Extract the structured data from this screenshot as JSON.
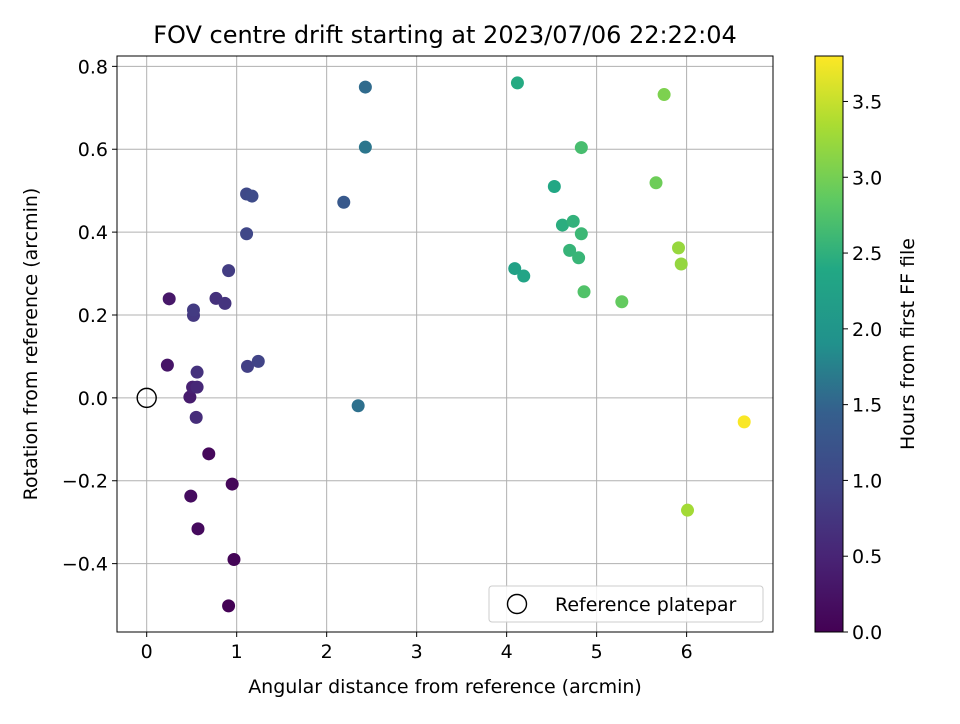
{
  "chart_data": {
    "type": "scatter",
    "title": "FOV centre drift starting at 2023/07/06 22:22:04",
    "xlabel": "Angular distance from reference (arcmin)",
    "ylabel": "Rotation from reference (arcmin)",
    "xlim": [
      -0.33,
      6.96
    ],
    "ylim": [
      -0.565,
      0.825
    ],
    "x_ticks": [
      0,
      1,
      2,
      3,
      4,
      5,
      6
    ],
    "x_tick_labels": [
      "0",
      "1",
      "2",
      "3",
      "4",
      "5",
      "6"
    ],
    "y_ticks": [
      -0.4,
      -0.2,
      0.0,
      0.2,
      0.4,
      0.6,
      0.8
    ],
    "y_tick_labels": [
      "−0.4",
      "−0.2",
      "0.0",
      "0.2",
      "0.4",
      "0.6",
      "0.8"
    ],
    "grid": true,
    "legend": {
      "placement": "lower-right",
      "entries": [
        {
          "label": "Reference platepar",
          "marker": "open-circle",
          "x": 0,
          "y": 0
        }
      ]
    },
    "colorbar": {
      "label": "Hours from first FF file",
      "colormap": "viridis",
      "range": [
        0.0,
        3.8
      ],
      "ticks": [
        0.0,
        0.5,
        1.0,
        1.5,
        2.0,
        2.5,
        3.0,
        3.5
      ],
      "tick_labels": [
        "0.0",
        "0.5",
        "1.0",
        "1.5",
        "2.0",
        "2.5",
        "3.0",
        "3.5"
      ]
    },
    "series": [
      {
        "points": [
          {
            "x": 0.91,
            "y": -0.502,
            "c": 0.02
          },
          {
            "x": 0.97,
            "y": -0.39,
            "c": 0.05
          },
          {
            "x": 0.95,
            "y": -0.208,
            "c": 0.08
          },
          {
            "x": 0.69,
            "y": -0.135,
            "c": 0.1
          },
          {
            "x": 0.57,
            "y": -0.316,
            "c": 0.13
          },
          {
            "x": 0.49,
            "y": -0.237,
            "c": 0.16
          },
          {
            "x": 0.23,
            "y": 0.079,
            "c": 0.28
          },
          {
            "x": 0.25,
            "y": 0.239,
            "c": 0.32
          },
          {
            "x": 0.48,
            "y": 0.002,
            "c": 0.38
          },
          {
            "x": 0.51,
            "y": 0.026,
            "c": 0.45
          },
          {
            "x": 0.56,
            "y": 0.026,
            "c": 0.55
          },
          {
            "x": 0.55,
            "y": -0.047,
            "c": 0.62
          },
          {
            "x": 0.56,
            "y": 0.062,
            "c": 0.7
          },
          {
            "x": 0.52,
            "y": 0.199,
            "c": 0.78
          },
          {
            "x": 0.52,
            "y": 0.212,
            "c": 0.82
          },
          {
            "x": 0.77,
            "y": 0.24,
            "c": 0.68
          },
          {
            "x": 0.87,
            "y": 0.228,
            "c": 0.72
          },
          {
            "x": 0.91,
            "y": 0.307,
            "c": 0.85
          },
          {
            "x": 1.12,
            "y": 0.076,
            "c": 0.9
          },
          {
            "x": 1.24,
            "y": 0.088,
            "c": 0.95
          },
          {
            "x": 1.11,
            "y": 0.396,
            "c": 1.0
          },
          {
            "x": 1.11,
            "y": 0.492,
            "c": 1.05
          },
          {
            "x": 1.17,
            "y": 0.487,
            "c": 1.08
          },
          {
            "x": 2.19,
            "y": 0.472,
            "c": 1.33
          },
          {
            "x": 2.43,
            "y": 0.75,
            "c": 1.55
          },
          {
            "x": 2.43,
            "y": 0.605,
            "c": 1.65
          },
          {
            "x": 2.35,
            "y": -0.019,
            "c": 1.6
          },
          {
            "x": 4.09,
            "y": 0.312,
            "c": 2.25
          },
          {
            "x": 4.19,
            "y": 0.294,
            "c": 2.3
          },
          {
            "x": 4.12,
            "y": 0.76,
            "c": 2.42
          },
          {
            "x": 4.53,
            "y": 0.51,
            "c": 2.38
          },
          {
            "x": 4.62,
            "y": 0.417,
            "c": 2.46
          },
          {
            "x": 4.74,
            "y": 0.426,
            "c": 2.52
          },
          {
            "x": 4.7,
            "y": 0.356,
            "c": 2.55
          },
          {
            "x": 4.8,
            "y": 0.338,
            "c": 2.57
          },
          {
            "x": 4.83,
            "y": 0.396,
            "c": 2.6
          },
          {
            "x": 4.83,
            "y": 0.604,
            "c": 2.68
          },
          {
            "x": 4.86,
            "y": 0.256,
            "c": 2.75
          },
          {
            "x": 5.28,
            "y": 0.232,
            "c": 2.88
          },
          {
            "x": 5.66,
            "y": 0.519,
            "c": 2.95
          },
          {
            "x": 5.75,
            "y": 0.732,
            "c": 3.05
          },
          {
            "x": 5.91,
            "y": 0.362,
            "c": 3.22
          },
          {
            "x": 5.94,
            "y": 0.323,
            "c": 3.2
          },
          {
            "x": 6.01,
            "y": -0.271,
            "c": 3.3
          },
          {
            "x": 6.64,
            "y": -0.058,
            "c": 3.78
          }
        ]
      }
    ]
  }
}
